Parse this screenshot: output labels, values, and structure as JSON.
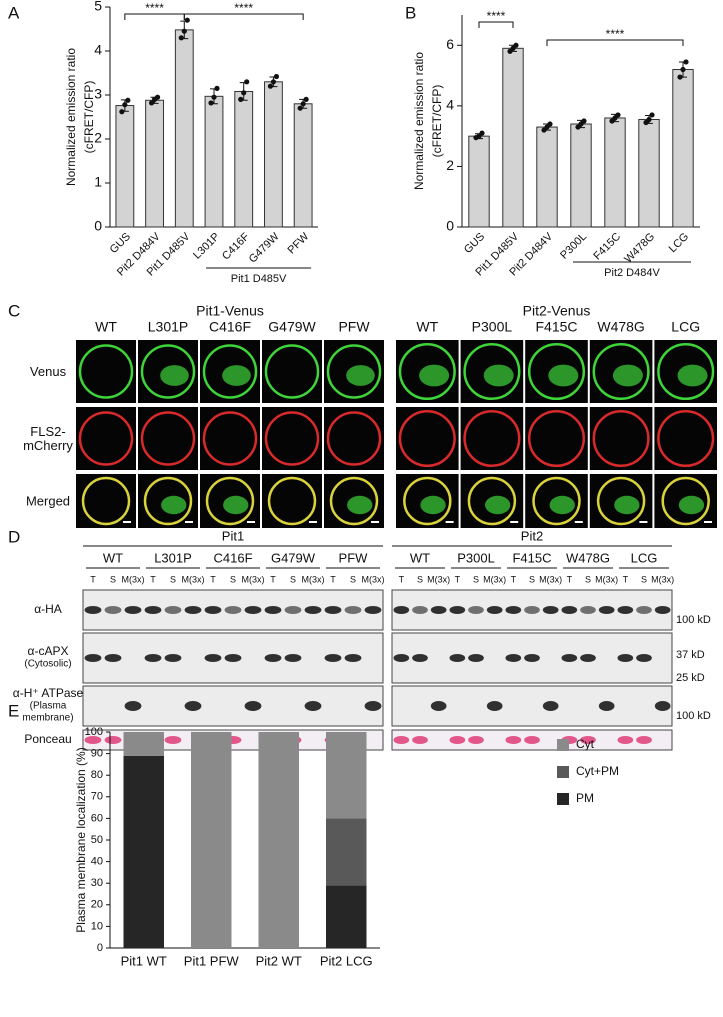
{
  "chart_data": [
    {
      "type": "bar",
      "panel_label": "A",
      "y_label": [
        "Normalized  emission ratio",
        "(cFRET/CFP)"
      ],
      "categories": [
        "GUS",
        "Pit2 D484V",
        "Pit1 D485V",
        "L301P",
        "C416F",
        "G479W",
        "PFW"
      ],
      "values": [
        2.76,
        2.88,
        4.48,
        2.97,
        3.08,
        3.3,
        2.8
      ],
      "errors": [
        0.13,
        0.07,
        0.2,
        0.17,
        0.2,
        0.11,
        0.1
      ],
      "points": [
        [
          2.62,
          2.78,
          2.88
        ],
        [
          2.82,
          2.9,
          2.95
        ],
        [
          4.3,
          4.45,
          4.7
        ],
        [
          2.82,
          2.95,
          3.15
        ],
        [
          2.9,
          3.05,
          3.3
        ],
        [
          3.2,
          3.3,
          3.42
        ],
        [
          2.7,
          2.8,
          2.9
        ]
      ],
      "color": "#d3d3d3",
      "ylim": [
        0,
        5
      ],
      "yticks": [
        0,
        1,
        2,
        3,
        4,
        5
      ],
      "significance": [
        "****",
        "****"
      ],
      "group_label": "Pit1 D485V"
    },
    {
      "type": "bar",
      "panel_label": "B",
      "y_label": [
        "Normalized  emission ratio",
        "(cFRET/CFP)"
      ],
      "categories": [
        "GUS",
        "Pit1 D485V",
        "Pit2 D484V",
        "P300L",
        "F415C",
        "W478G",
        "LCG"
      ],
      "values": [
        3.0,
        5.9,
        3.3,
        3.4,
        3.6,
        3.55,
        5.2
      ],
      "errors": [
        0.08,
        0.1,
        0.1,
        0.12,
        0.12,
        0.13,
        0.25
      ],
      "points": [
        [
          2.95,
          3.0,
          3.1
        ],
        [
          5.8,
          5.9,
          6.0
        ],
        [
          3.2,
          3.3,
          3.4
        ],
        [
          3.3,
          3.4,
          3.5
        ],
        [
          3.5,
          3.6,
          3.7
        ],
        [
          3.45,
          3.55,
          3.7
        ],
        [
          4.95,
          5.2,
          5.45
        ]
      ],
      "color": "#d3d3d3",
      "ylim": [
        0,
        7
      ],
      "yticks": [
        0,
        2,
        4,
        6
      ],
      "significance": [
        "****",
        "****"
      ],
      "group_label": "Pit2 D484V"
    },
    {
      "type": "stacked_bar",
      "panel_label": "E",
      "y_label": "Plasma membrane localization (%)",
      "categories": [
        "Pit1 WT",
        "Pit1 PFW",
        "Pit2 WT",
        "Pit2 LCG"
      ],
      "series": [
        {
          "name": "PM",
          "color": "#262626",
          "values": [
            89,
            0,
            0,
            29
          ]
        },
        {
          "name": "Cyt+PM",
          "color": "#595959",
          "values": [
            0,
            0,
            0,
            31
          ]
        },
        {
          "name": "Cyt",
          "color": "#8a8a8a",
          "values": [
            11,
            100,
            100,
            40
          ]
        }
      ],
      "ylim": [
        0,
        100
      ],
      "yticks": [
        0,
        10,
        20,
        30,
        40,
        50,
        60,
        70,
        80,
        90,
        100
      ]
    }
  ],
  "cell_imaging": {
    "panel_label": "C",
    "groups": [
      {
        "title": "Pit1-Venus",
        "columns": [
          "WT",
          "L301P",
          "C416F",
          "G479W",
          "PFW"
        ]
      },
      {
        "title": "Pit2-Venus",
        "columns": [
          "WT",
          "P300L",
          "F415C",
          "W478G",
          "LCG"
        ]
      }
    ],
    "rows": [
      [
        "Venus"
      ],
      [
        "FLS2-",
        "mCherry"
      ],
      [
        "Merged"
      ]
    ]
  },
  "western_blot": {
    "panel_label": "D",
    "groups": [
      {
        "title": "Pit1",
        "samples": [
          "WT",
          "L301P",
          "C416F",
          "G479W",
          "PFW"
        ]
      },
      {
        "title": "Pit2",
        "samples": [
          "WT",
          "P300L",
          "F415C",
          "W478G",
          "LCG"
        ]
      }
    ],
    "lanes": [
      "T",
      "S",
      "M(3x)"
    ],
    "rows": [
      [
        "α-HA"
      ],
      [
        "α-cAPX",
        "(Cytosolic)"
      ],
      [
        "α-H⁺ ATPase",
        "(Plasma",
        "membrane)"
      ],
      [
        "Ponceau"
      ]
    ],
    "markers": [
      "100 kD",
      "37 kD",
      "25 kD",
      "100 kD"
    ]
  }
}
